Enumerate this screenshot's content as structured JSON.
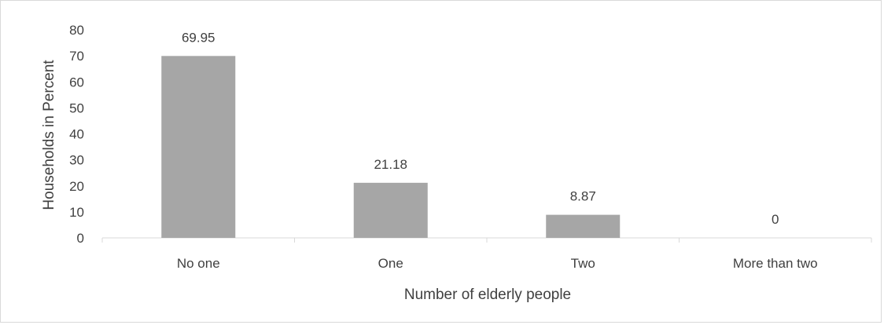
{
  "chart_data": {
    "type": "bar",
    "categories": [
      "No one",
      "One",
      "Two",
      "More than two"
    ],
    "values": [
      69.95,
      21.18,
      8.87,
      0
    ],
    "data_labels": [
      "69.95",
      "21.18",
      "8.87",
      "0"
    ],
    "xlabel": "Number of elderly people",
    "ylabel": "Households in Percent",
    "ylim": [
      0,
      80
    ],
    "yticks": [
      0,
      10,
      20,
      30,
      40,
      50,
      60,
      70,
      80
    ],
    "grid": false,
    "bar_color": "#a6a6a6",
    "axis_color": "#d9d9d9",
    "text_color": "#404040"
  }
}
